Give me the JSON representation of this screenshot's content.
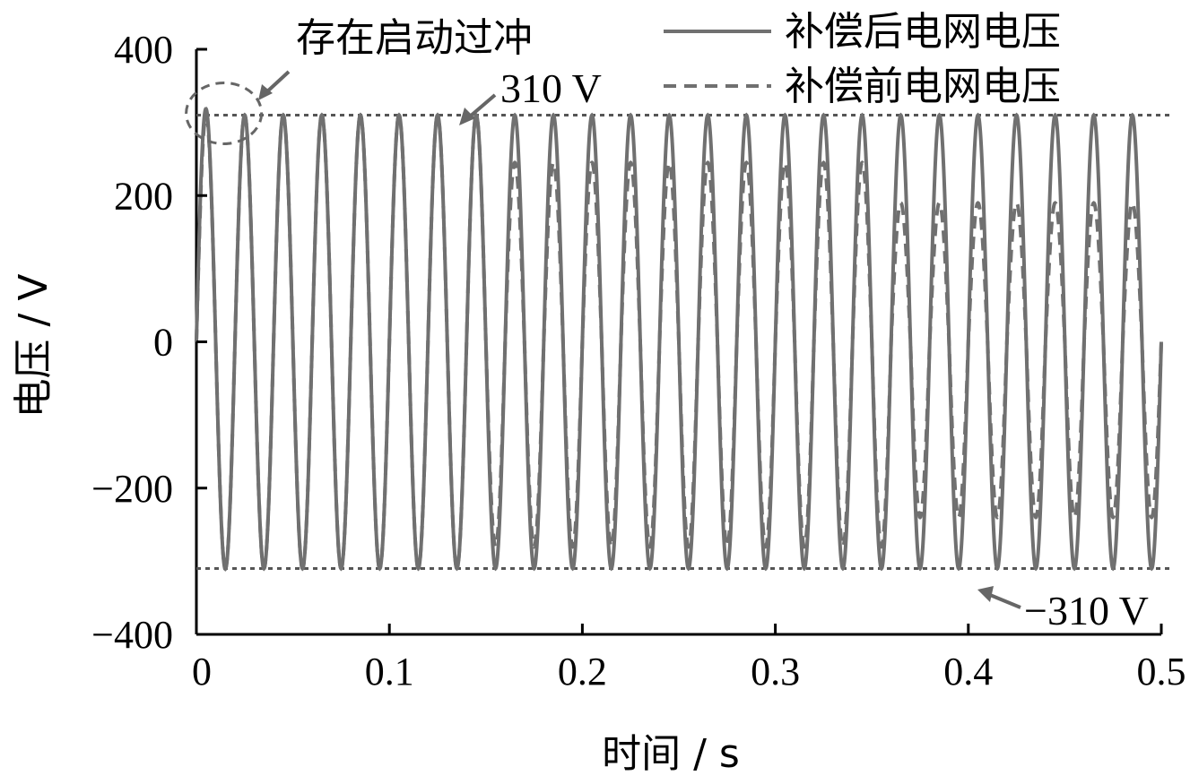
{
  "chart_data": {
    "type": "line",
    "xlabel": "时间 / s",
    "ylabel": "电压 / V",
    "xlim": [
      0,
      0.5
    ],
    "ylim": [
      -400,
      400
    ],
    "x_ticks": [
      0,
      0.1,
      0.2,
      0.3,
      0.4,
      0.5
    ],
    "x_tick_labels": [
      "0",
      "0.1",
      "0.2",
      "0.3",
      "0.4",
      "0.5"
    ],
    "y_ticks": [
      400,
      200,
      0,
      -200,
      -400
    ],
    "y_tick_labels": [
      "400",
      "200",
      "0",
      "−200",
      "−400"
    ],
    "grid": false,
    "legend_position": "top-right",
    "frequency_hz": 50,
    "series": [
      {
        "name": "补偿后电网电压",
        "style": "solid",
        "color": "#707070",
        "amplitude": 310,
        "startup_overshoot_peak": 340
      },
      {
        "name": "补偿前电网电压",
        "style": "dashed",
        "color": "#707070",
        "segments": [
          {
            "from": 0.0,
            "to": 0.15,
            "max": 310,
            "min": -310
          },
          {
            "from": 0.15,
            "to": 0.36,
            "max": 245,
            "min": -280
          },
          {
            "from": 0.36,
            "to": 0.5,
            "max": 190,
            "min": -240
          }
        ]
      }
    ],
    "reference_lines": [
      {
        "y": 310,
        "label": "310 V"
      },
      {
        "y": -310,
        "label": "−310 V"
      }
    ],
    "annotations": [
      {
        "text": "存在启动过冲",
        "target_x": 0.004,
        "target_y": 310
      }
    ]
  }
}
